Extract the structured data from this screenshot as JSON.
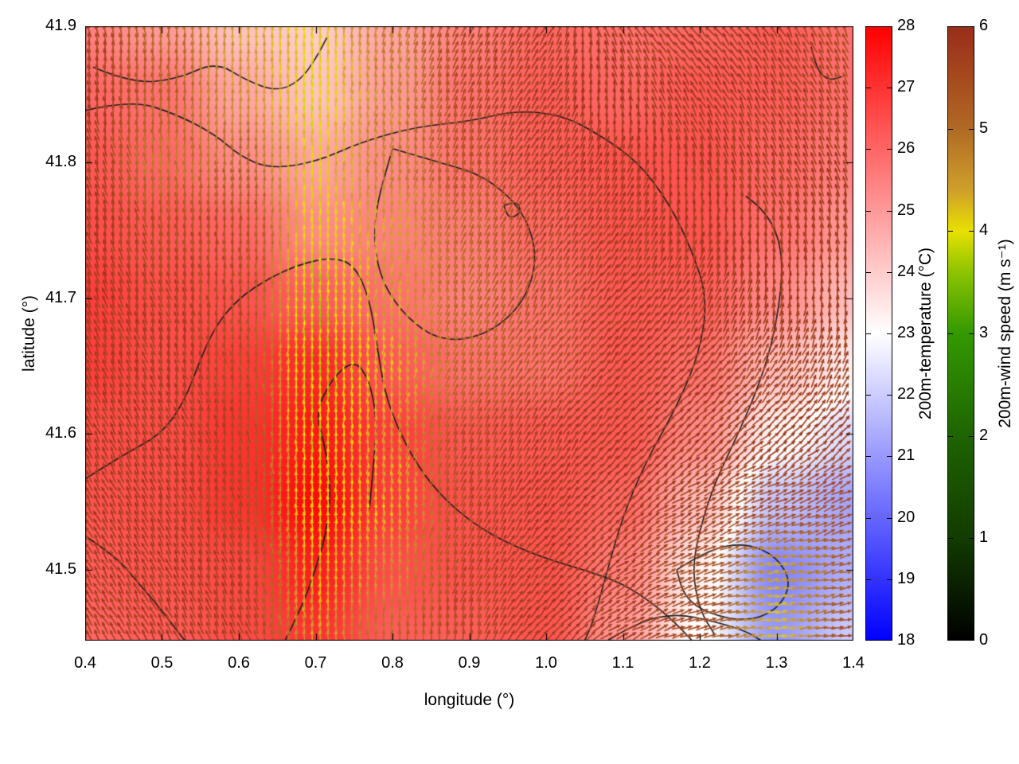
{
  "figure": {
    "xlabel": "longitude (°)",
    "ylabel": "latitude (°)"
  },
  "axes": {
    "x_ticks": [
      0.4,
      0.5,
      0.6,
      0.7,
      0.8,
      0.9,
      1.0,
      1.1,
      1.2,
      1.3,
      1.4
    ],
    "y_ticks": [
      41.5,
      41.6,
      41.7,
      41.8,
      41.9
    ],
    "x_range": [
      0.4,
      1.4
    ],
    "y_range": [
      41.448,
      41.9
    ]
  },
  "colorbars": {
    "temperature": {
      "label": "200m-temperature (°C)",
      "min": 18,
      "max": 28,
      "ticks": [
        18,
        19,
        20,
        21,
        22,
        23,
        24,
        25,
        26,
        27,
        28
      ],
      "stops": [
        {
          "v": 18,
          "c": "#0000ff"
        },
        {
          "v": 23,
          "c": "#ffffff"
        },
        {
          "v": 28,
          "c": "#ff0000"
        }
      ]
    },
    "wind": {
      "label": "200m-wind speed (m s⁻¹)",
      "min": 0,
      "max": 6,
      "ticks": [
        0,
        1,
        2,
        3,
        4,
        5,
        6
      ],
      "stops": [
        {
          "v": 0,
          "c": "#000000"
        },
        {
          "v": 1,
          "c": "#123c00"
        },
        {
          "v": 2,
          "c": "#1e6400"
        },
        {
          "v": 3,
          "c": "#339900"
        },
        {
          "v": 3.6,
          "c": "#8cc400"
        },
        {
          "v": 4,
          "c": "#e8e000"
        },
        {
          "v": 4.4,
          "c": "#cfa02a"
        },
        {
          "v": 5,
          "c": "#b06a24"
        },
        {
          "v": 5.5,
          "c": "#a64a1e"
        },
        {
          "v": 6,
          "c": "#992d1a"
        }
      ]
    }
  },
  "chart_data": {
    "type": "heatmap",
    "subtype": "temperature field with wind vector overlay and contour lines",
    "title": "",
    "xlabel": "longitude (°)",
    "ylabel": "latitude (°)",
    "xlim": [
      0.4,
      1.4
    ],
    "ylim": [
      41.448,
      41.9
    ],
    "temperature_range_C": [
      18,
      28
    ],
    "wind_speed_range_ms": [
      0,
      6
    ],
    "dir_convention": "degrees counterclockwise from east (0=E, 90=N)",
    "grid_lon": [
      0.4,
      0.5,
      0.6,
      0.7,
      0.8,
      0.9,
      1.0,
      1.1,
      1.2,
      1.3,
      1.4
    ],
    "grid_lat": [
      41.9,
      41.85,
      41.8,
      41.75,
      41.7,
      41.65,
      41.6,
      41.55,
      41.5,
      41.45
    ],
    "temperature_C": [
      [
        25.5,
        25.0,
        24.2,
        24.0,
        24.8,
        25.5,
        26.0,
        25.8,
        26.0,
        26.2,
        25.8
      ],
      [
        26.0,
        25.8,
        24.8,
        24.2,
        25.0,
        25.8,
        26.2,
        26.0,
        26.3,
        26.2,
        25.8
      ],
      [
        26.3,
        26.0,
        25.3,
        24.8,
        25.3,
        25.8,
        26.2,
        26.4,
        26.4,
        26.0,
        25.5
      ],
      [
        26.5,
        26.3,
        26.0,
        25.3,
        25.5,
        25.6,
        26.0,
        26.4,
        26.4,
        25.8,
        25.0
      ],
      [
        26.8,
        26.5,
        26.4,
        26.2,
        25.8,
        25.5,
        25.8,
        26.3,
        26.2,
        25.3,
        24.3
      ],
      [
        26.8,
        26.5,
        26.8,
        27.2,
        26.3,
        25.8,
        25.8,
        26.3,
        25.8,
        24.3,
        23.3
      ],
      [
        26.5,
        26.5,
        27.0,
        27.5,
        26.8,
        26.3,
        26.3,
        26.3,
        25.3,
        23.2,
        22.3
      ],
      [
        26.4,
        26.5,
        27.0,
        27.8,
        26.8,
        26.4,
        26.4,
        26.0,
        24.3,
        21.8,
        21.2
      ],
      [
        26.2,
        26.4,
        26.6,
        27.4,
        26.5,
        26.4,
        26.4,
        25.5,
        23.3,
        20.6,
        21.4
      ],
      [
        26.0,
        26.2,
        26.5,
        27.0,
        26.2,
        26.2,
        26.4,
        25.0,
        23.0,
        21.0,
        22.0
      ]
    ],
    "wind_speed_ms": [
      [
        5.6,
        5.0,
        4.4,
        4.1,
        4.8,
        5.5,
        5.7,
        5.7,
        5.7,
        5.7,
        5.5
      ],
      [
        5.7,
        5.1,
        4.5,
        4.0,
        4.6,
        5.5,
        5.7,
        5.7,
        5.7,
        5.7,
        5.6
      ],
      [
        5.7,
        4.8,
        5.0,
        4.1,
        4.7,
        5.3,
        5.7,
        5.7,
        5.7,
        5.7,
        5.7
      ],
      [
        5.7,
        5.4,
        5.4,
        4.0,
        4.4,
        5.0,
        5.5,
        5.7,
        5.7,
        5.7,
        5.7
      ],
      [
        5.7,
        5.6,
        5.4,
        3.8,
        4.4,
        5.0,
        5.3,
        5.7,
        5.7,
        5.7,
        5.7
      ],
      [
        5.7,
        5.7,
        5.4,
        3.8,
        4.2,
        5.0,
        5.3,
        5.7,
        5.7,
        5.7,
        5.7
      ],
      [
        5.7,
        5.7,
        5.5,
        3.9,
        4.4,
        5.4,
        5.7,
        5.7,
        5.7,
        5.7,
        5.7
      ],
      [
        5.7,
        5.7,
        5.5,
        4.0,
        4.2,
        5.5,
        5.7,
        5.7,
        5.7,
        5.5,
        5.5
      ],
      [
        5.7,
        5.7,
        5.6,
        4.2,
        4.5,
        5.5,
        5.7,
        5.7,
        5.5,
        4.4,
        5.2
      ],
      [
        5.7,
        5.7,
        5.6,
        4.4,
        5.0,
        5.5,
        5.7,
        5.7,
        5.5,
        4.2,
        5.5
      ]
    ],
    "wind_dir_deg": [
      [
        100,
        95,
        90,
        88,
        80,
        70,
        62,
        118,
        128,
        120,
        110
      ],
      [
        100,
        96,
        92,
        88,
        80,
        70,
        62,
        100,
        120,
        115,
        110
      ],
      [
        105,
        100,
        95,
        90,
        80,
        72,
        62,
        72,
        100,
        110,
        105
      ],
      [
        105,
        100,
        96,
        90,
        80,
        72,
        65,
        60,
        80,
        100,
        100
      ],
      [
        110,
        105,
        96,
        90,
        80,
        72,
        65,
        55,
        62,
        80,
        90
      ],
      [
        110,
        105,
        100,
        90,
        80,
        70,
        60,
        50,
        50,
        60,
        70
      ],
      [
        115,
        110,
        100,
        90,
        80,
        70,
        60,
        50,
        42,
        40,
        45
      ],
      [
        115,
        110,
        105,
        92,
        84,
        70,
        55,
        45,
        30,
        22,
        25
      ],
      [
        120,
        112,
        105,
        95,
        85,
        70,
        50,
        35,
        20,
        12,
        12
      ],
      [
        120,
        115,
        110,
        100,
        90,
        75,
        50,
        30,
        15,
        6,
        10
      ]
    ],
    "contour_lines_lonlat": [
      [
        [
          0.41,
          41.87
        ],
        [
          0.46,
          41.858
        ],
        [
          0.52,
          41.861
        ],
        [
          0.57,
          41.874
        ],
        [
          0.61,
          41.86
        ],
        [
          0.65,
          41.852
        ],
        [
          0.68,
          41.86
        ],
        [
          0.7,
          41.876
        ],
        [
          0.715,
          41.892
        ]
      ],
      [
        [
          0.4,
          41.838
        ],
        [
          0.46,
          41.846
        ],
        [
          0.52,
          41.835
        ],
        [
          0.57,
          41.82
        ],
        [
          0.6,
          41.805
        ],
        [
          0.64,
          41.795
        ],
        [
          0.7,
          41.8
        ],
        [
          0.76,
          41.815
        ],
        [
          0.83,
          41.826
        ],
        [
          0.9,
          41.83
        ],
        [
          0.96,
          41.838
        ],
        [
          1.02,
          41.835
        ],
        [
          1.07,
          41.82
        ],
        [
          1.12,
          41.8
        ],
        [
          1.16,
          41.77
        ],
        [
          1.19,
          41.735
        ],
        [
          1.21,
          41.7
        ],
        [
          1.2,
          41.66
        ],
        [
          1.17,
          41.62
        ],
        [
          1.13,
          41.58
        ],
        [
          1.1,
          41.54
        ],
        [
          1.08,
          41.5
        ],
        [
          1.06,
          41.46
        ],
        [
          1.05,
          41.448
        ]
      ],
      [
        [
          0.8,
          41.81
        ],
        [
          0.86,
          41.8
        ],
        [
          0.92,
          41.79
        ],
        [
          0.97,
          41.765
        ],
        [
          0.99,
          41.73
        ],
        [
          0.97,
          41.695
        ],
        [
          0.92,
          41.672
        ],
        [
          0.86,
          41.668
        ],
        [
          0.81,
          41.69
        ],
        [
          0.78,
          41.72
        ],
        [
          0.775,
          41.76
        ],
        [
          0.8,
          41.81
        ]
      ],
      [
        [
          0.945,
          41.768
        ],
        [
          0.962,
          41.772
        ],
        [
          0.968,
          41.763
        ],
        [
          0.952,
          41.758
        ],
        [
          0.945,
          41.768
        ]
      ],
      [
        [
          0.4,
          41.567
        ],
        [
          0.45,
          41.585
        ],
        [
          0.5,
          41.6
        ],
        [
          0.53,
          41.625
        ],
        [
          0.55,
          41.655
        ],
        [
          0.57,
          41.68
        ],
        [
          0.6,
          41.7
        ],
        [
          0.64,
          41.715
        ],
        [
          0.68,
          41.725
        ],
        [
          0.72,
          41.73
        ],
        [
          0.75,
          41.725
        ],
        [
          0.77,
          41.7
        ],
        [
          0.78,
          41.665
        ],
        [
          0.79,
          41.63
        ],
        [
          0.81,
          41.6
        ],
        [
          0.84,
          41.57
        ],
        [
          0.88,
          41.545
        ],
        [
          0.93,
          41.525
        ],
        [
          0.99,
          41.51
        ],
        [
          1.05,
          41.5
        ],
        [
          1.1,
          41.49
        ],
        [
          1.14,
          41.475
        ],
        [
          1.17,
          41.46
        ],
        [
          1.19,
          41.448
        ]
      ],
      [
        [
          0.66,
          41.448
        ],
        [
          0.68,
          41.47
        ],
        [
          0.7,
          41.5
        ],
        [
          0.715,
          41.53
        ],
        [
          0.72,
          41.56
        ],
        [
          0.712,
          41.592
        ],
        [
          0.7,
          41.615
        ],
        [
          0.72,
          41.64
        ],
        [
          0.75,
          41.655
        ],
        [
          0.77,
          41.64
        ],
        [
          0.78,
          41.61
        ],
        [
          0.775,
          41.575
        ],
        [
          0.77,
          41.545
        ]
      ],
      [
        [
          0.4,
          41.525
        ],
        [
          0.44,
          41.51
        ],
        [
          0.47,
          41.49
        ],
        [
          0.5,
          41.47
        ],
        [
          0.52,
          41.455
        ],
        [
          0.53,
          41.448
        ]
      ],
      [
        [
          1.26,
          41.775
        ],
        [
          1.29,
          41.763
        ],
        [
          1.31,
          41.73
        ],
        [
          1.3,
          41.68
        ],
        [
          1.28,
          41.64
        ],
        [
          1.25,
          41.6
        ],
        [
          1.22,
          41.565
        ],
        [
          1.2,
          41.53
        ],
        [
          1.19,
          41.5
        ],
        [
          1.2,
          41.47
        ],
        [
          1.22,
          41.452
        ]
      ],
      [
        [
          1.17,
          41.5
        ],
        [
          1.21,
          41.515
        ],
        [
          1.26,
          41.52
        ],
        [
          1.3,
          41.51
        ],
        [
          1.32,
          41.49
        ],
        [
          1.3,
          41.47
        ],
        [
          1.26,
          41.462
        ],
        [
          1.21,
          41.468
        ],
        [
          1.18,
          41.48
        ],
        [
          1.17,
          41.5
        ]
      ],
      [
        [
          1.08,
          41.448
        ],
        [
          1.12,
          41.462
        ],
        [
          1.17,
          41.468
        ],
        [
          1.22,
          41.462
        ],
        [
          1.26,
          41.455
        ],
        [
          1.28,
          41.448
        ]
      ],
      [
        [
          1.345,
          41.885
        ],
        [
          1.352,
          41.868
        ],
        [
          1.368,
          41.86
        ],
        [
          1.385,
          41.863
        ]
      ]
    ]
  }
}
